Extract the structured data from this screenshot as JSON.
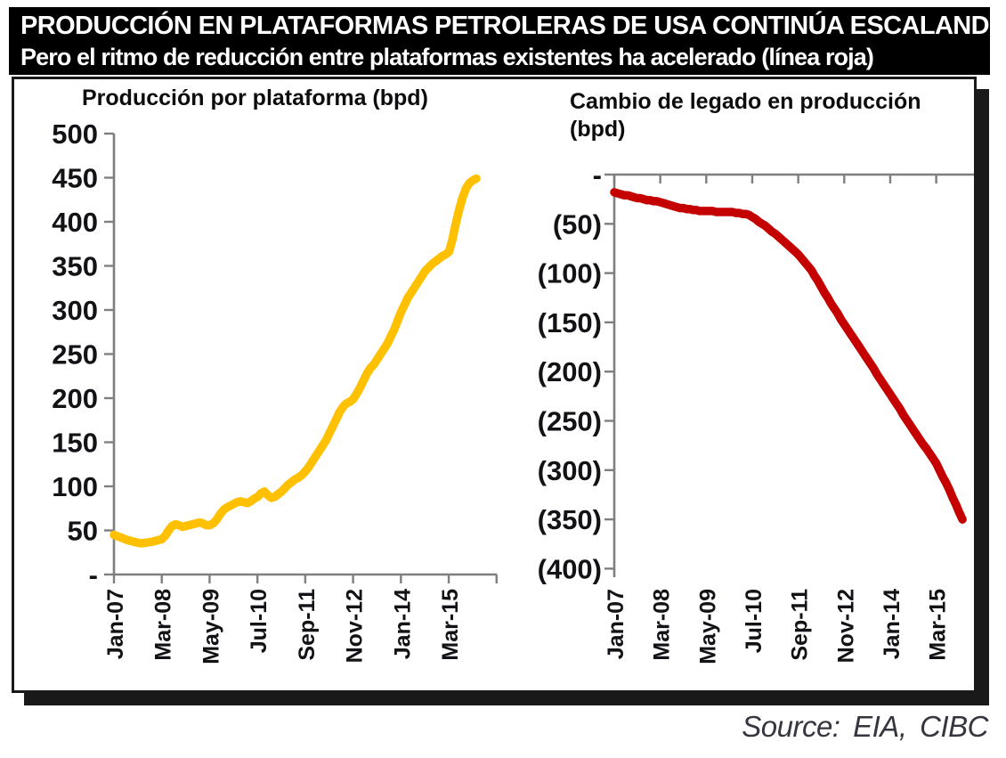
{
  "banner": {
    "line1": "PRODUCCIÓN EN PLATAFORMAS PETROLERAS DE USA CONTINÚA ESCALANDO",
    "line2": "Pero el ritmo de reducción entre plataformas existentes ha acelerado (línea roja)"
  },
  "source_note": "Source: EIA, CIBC",
  "colors": {
    "banner_bg": "#000000",
    "banner_text": "#ffffff",
    "axis": "#7f7f7f",
    "tick_label": "#131317",
    "production_line": "#FFC000",
    "legacy_line": "#C40000",
    "source_text": "#35363f"
  },
  "chart_data": [
    {
      "id": "production-per-rig",
      "type": "line",
      "title": "Producción por plataforma (bpd)",
      "xlabel": "",
      "ylabel": "",
      "x_unit": "monthly, index 0 = Jan-07",
      "x_tick_labels": [
        "Jan-07",
        "Mar-08",
        "May-09",
        "Jul-10",
        "Sep-11",
        "Nov-12",
        "Jan-14",
        "Mar-15"
      ],
      "x_tick_interval_months": 14,
      "y_tick_labels": [
        "500",
        "450",
        "400",
        "350",
        "300",
        "250",
        "200",
        "150",
        "100",
        "50",
        "-"
      ],
      "ylim": [
        0,
        500
      ],
      "grid": false,
      "legend": "none",
      "series": [
        {
          "name": "Producción por plataforma (bpd)",
          "color": "#FFC000",
          "values": [
            45,
            43.5,
            42,
            40.5,
            39,
            38,
            37,
            36,
            35.5,
            36,
            36.5,
            37,
            38,
            39,
            40,
            44,
            50,
            55,
            57,
            56,
            54,
            55,
            56,
            57,
            58,
            59,
            58,
            56,
            56,
            58,
            62,
            68,
            73,
            76,
            78,
            80,
            82,
            83,
            82,
            81,
            83,
            86,
            88,
            92,
            94,
            90,
            87,
            88,
            91,
            94,
            98,
            102,
            105,
            108,
            110,
            113,
            117,
            122,
            128,
            134,
            140,
            146,
            152,
            160,
            168,
            176,
            184,
            190,
            194,
            196,
            199,
            205,
            212,
            220,
            228,
            234,
            238,
            244,
            250,
            256,
            262,
            270,
            278,
            288,
            298,
            306,
            314,
            320,
            326,
            332,
            338,
            344,
            348,
            352,
            355,
            358,
            361,
            363,
            366,
            380,
            398,
            414,
            428,
            438,
            444,
            447,
            449
          ]
        }
      ]
    },
    {
      "id": "legacy-production-change",
      "type": "line",
      "title": "Cambio de legado en producción (bpd)",
      "xlabel": "",
      "ylabel": "",
      "x_unit": "monthly, index 0 = Jan-07",
      "x_tick_labels": [
        "Jan-07",
        "Mar-08",
        "May-09",
        "Jul-10",
        "Sep-11",
        "Nov-12",
        "Jan-14",
        "Mar-15"
      ],
      "x_tick_interval_months": 14,
      "y_tick_labels": [
        "-",
        "(50)",
        "(100)",
        "(150)",
        "(200)",
        "(250)",
        "(300)",
        "(350)",
        "(400)"
      ],
      "ylim": [
        -400,
        0
      ],
      "grid": false,
      "legend": "none",
      "series": [
        {
          "name": "Cambio de legado en producción (bpd)",
          "color": "#C40000",
          "values": [
            -18,
            -19,
            -20,
            -21,
            -21,
            -22,
            -23,
            -24,
            -24,
            -25,
            -26,
            -26,
            -27,
            -27,
            -28,
            -29,
            -30,
            -31,
            -32,
            -33,
            -34,
            -34,
            -35,
            -35,
            -36,
            -36,
            -37,
            -37,
            -37,
            -37,
            -37,
            -38,
            -38,
            -38,
            -38,
            -38,
            -38,
            -39,
            -39,
            -40,
            -40,
            -41,
            -43,
            -45,
            -48,
            -50,
            -52,
            -55,
            -58,
            -60,
            -63,
            -66,
            -69,
            -72,
            -75,
            -78,
            -81,
            -85,
            -89,
            -93,
            -97,
            -103,
            -108,
            -114,
            -120,
            -125,
            -131,
            -136,
            -141,
            -147,
            -152,
            -157,
            -162,
            -167,
            -172,
            -177,
            -182,
            -187,
            -192,
            -197,
            -203,
            -208,
            -213,
            -218,
            -223,
            -228,
            -233,
            -238,
            -244,
            -249,
            -254,
            -259,
            -264,
            -269,
            -274,
            -278,
            -283,
            -288,
            -293,
            -300,
            -307,
            -313,
            -320,
            -328,
            -335,
            -343,
            -350
          ]
        }
      ]
    }
  ]
}
